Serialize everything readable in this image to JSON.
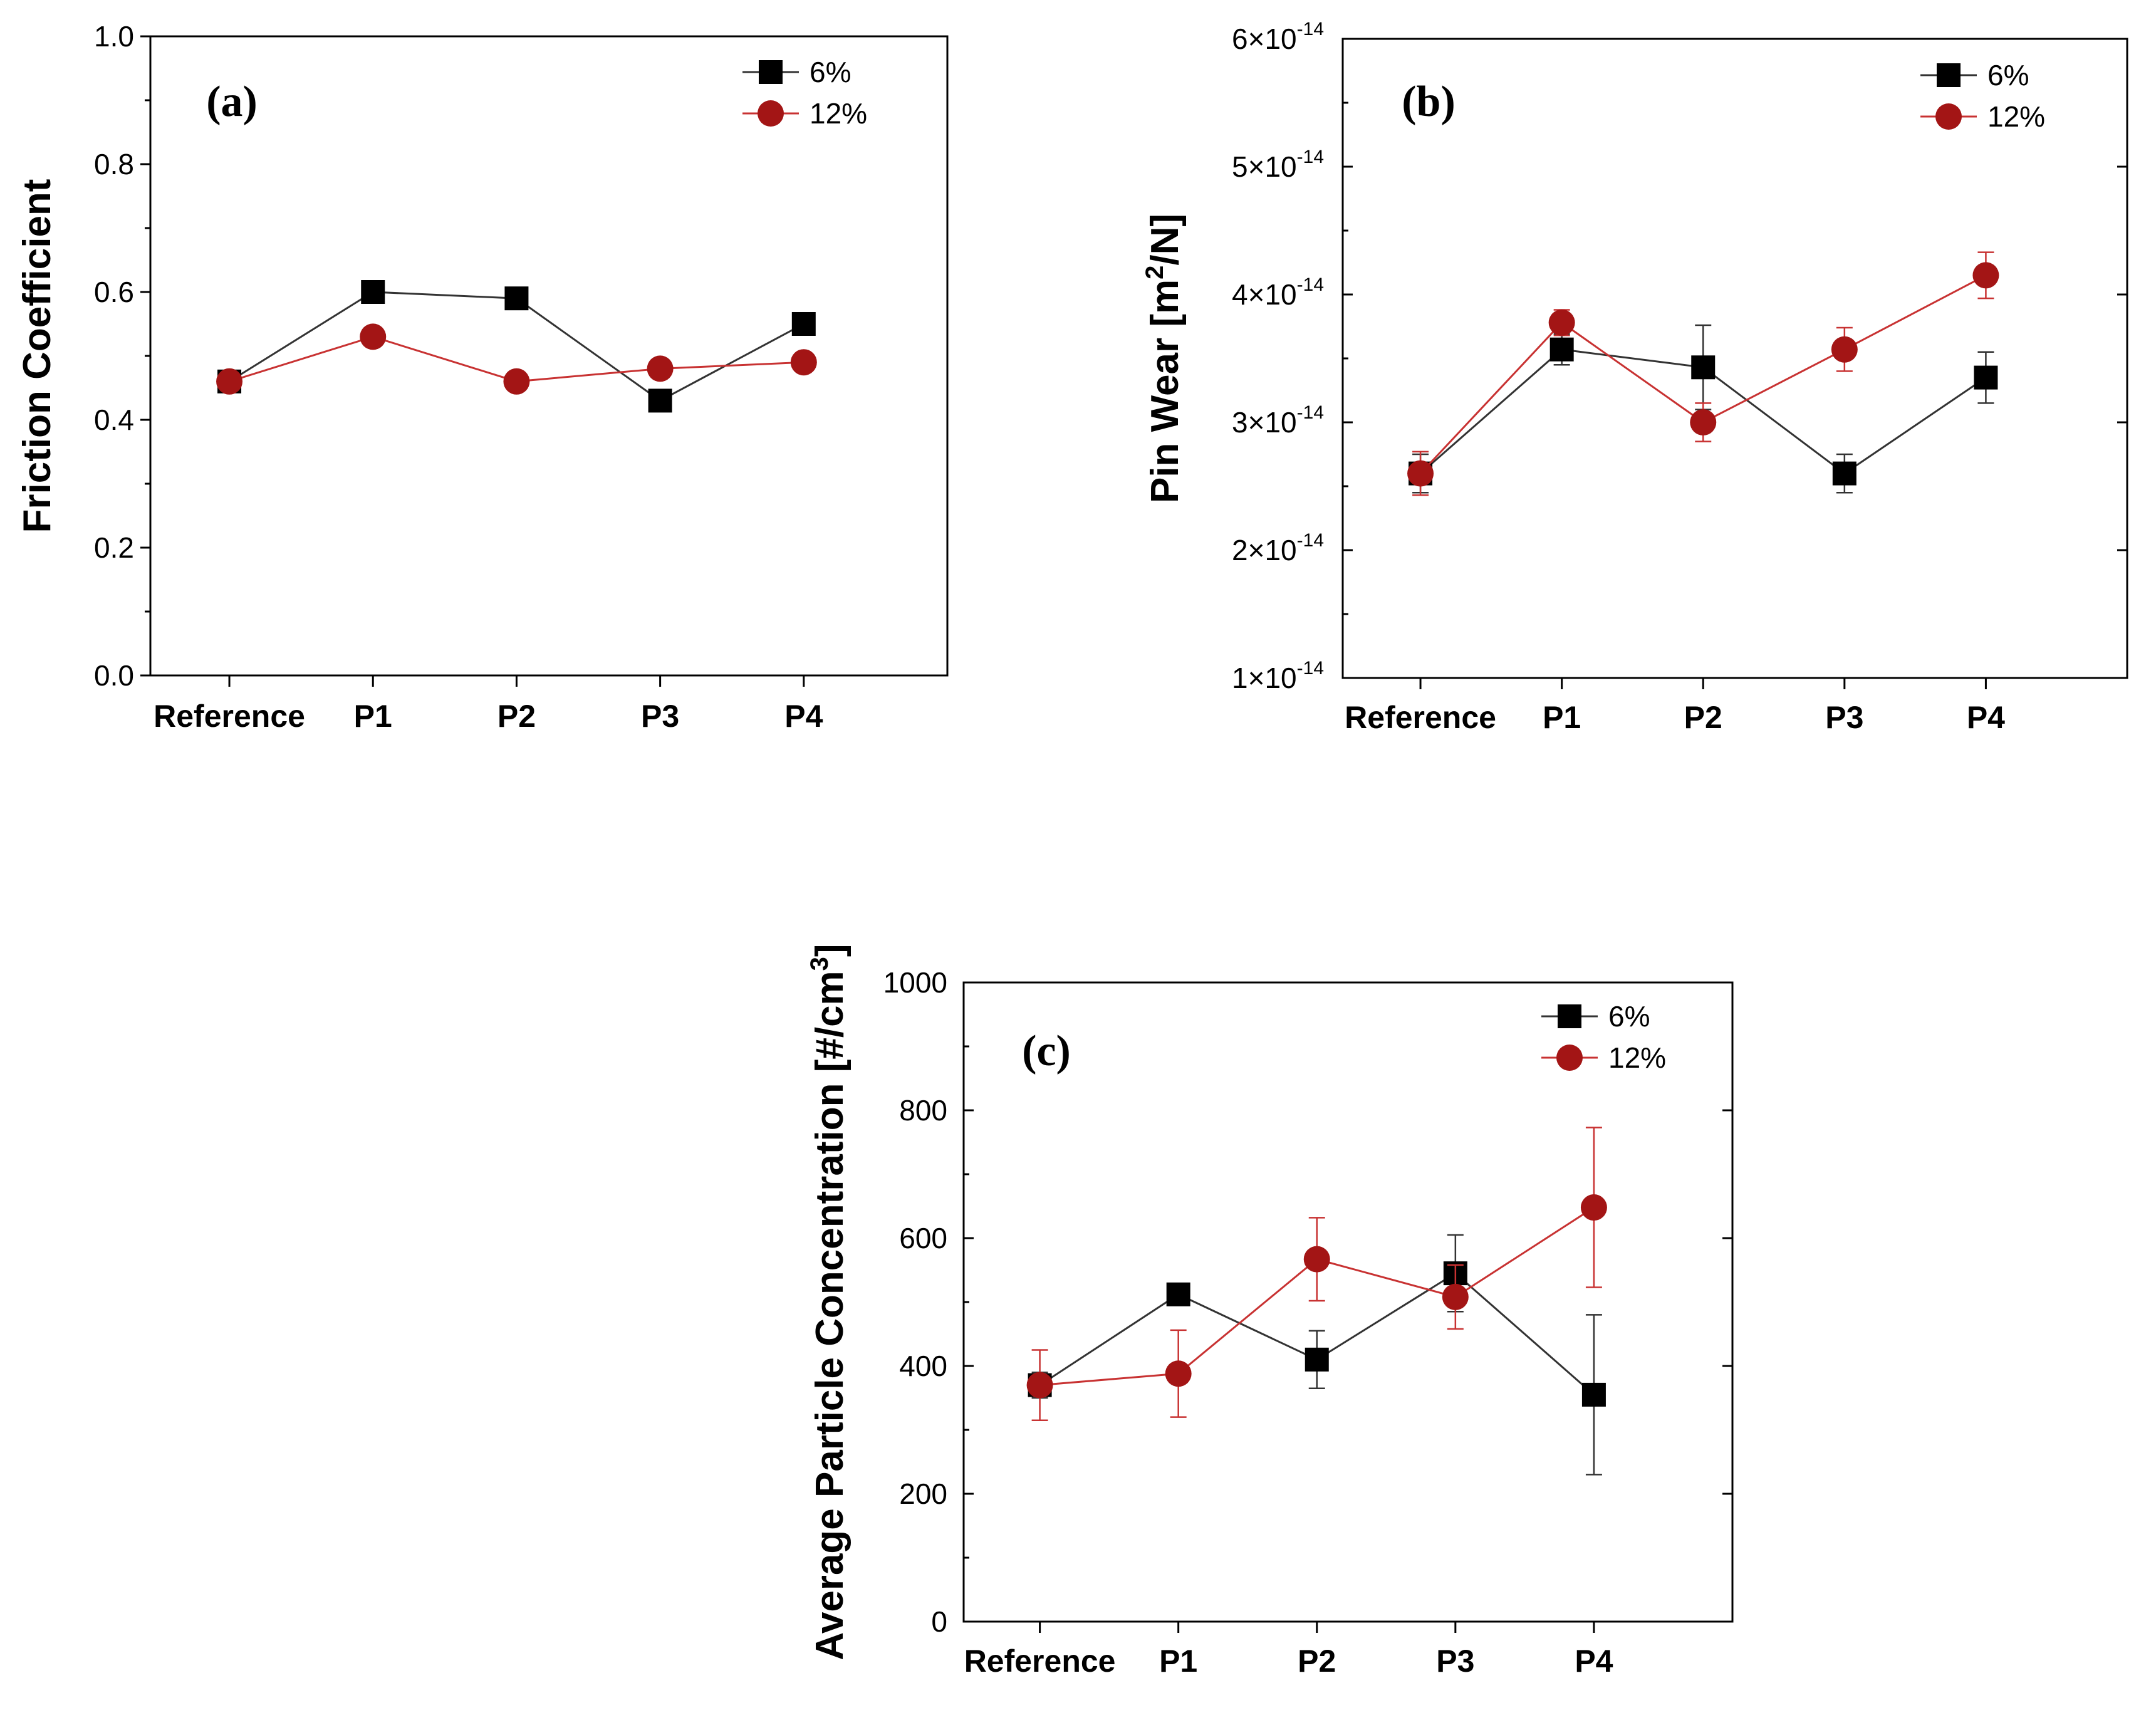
{
  "chart_data": [
    {
      "type": "line",
      "panel_label": "(a)",
      "title": "",
      "xlabel": "",
      "ylabel": "Friction Coefficient",
      "categories": [
        "Reference",
        "P1",
        "P2",
        "P3",
        "P4"
      ],
      "ylim": [
        0.0,
        1.0
      ],
      "yticks": [
        0.0,
        0.2,
        0.4,
        0.6,
        0.8,
        1.0
      ],
      "ytick_labels": [
        "0.0",
        "0.2",
        "0.4",
        "0.6",
        "0.8",
        "1.0"
      ],
      "legend_position": "top-right",
      "series": [
        {
          "name": "6%",
          "marker": "square",
          "color": "#000000",
          "line_color": "#333333",
          "values": [
            0.46,
            0.6,
            0.59,
            0.43,
            0.55
          ],
          "errors": [
            0.01,
            0.01,
            0.01,
            0.01,
            0.015
          ]
        },
        {
          "name": "12%",
          "marker": "circle",
          "color": "#a31515",
          "line_color": "#c83232",
          "values": [
            0.46,
            0.53,
            0.46,
            0.48,
            0.49
          ],
          "errors": [
            0.01,
            0.01,
            0.01,
            0.01,
            0.01
          ]
        }
      ]
    },
    {
      "type": "line",
      "panel_label": "(b)",
      "title": "",
      "xlabel": "",
      "ylabel": "Pin Wear [m²/N]",
      "ylabel_base": "Pin Wear [m",
      "ylabel_sup": "2",
      "ylabel_end": "/N]",
      "categories": [
        "Reference",
        "P1",
        "P2",
        "P3",
        "P4"
      ],
      "ylim": [
        1e-14,
        6e-14
      ],
      "yticks": [
        1e-14,
        2e-14,
        3e-14,
        4e-14,
        5e-14,
        6e-14
      ],
      "ytick_labels": [
        {
          "base": "1×10",
          "exp": "-14"
        },
        {
          "base": "2×10",
          "exp": "-14"
        },
        {
          "base": "3×10",
          "exp": "-14"
        },
        {
          "base": "4×10",
          "exp": "-14"
        },
        {
          "base": "5×10",
          "exp": "-14"
        },
        {
          "base": "6×10",
          "exp": "-14"
        }
      ],
      "legend_position": "top-right",
      "series": [
        {
          "name": "6%",
          "marker": "square",
          "color": "#000000",
          "line_color": "#333333",
          "values": [
            2.6e-14,
            3.57e-14,
            3.43e-14,
            2.6e-14,
            3.35e-14
          ],
          "errors": [
            1.5e-15,
            1.2e-15,
            3.3e-15,
            1.5e-15,
            2e-15
          ]
        },
        {
          "name": "12%",
          "marker": "circle",
          "color": "#a31515",
          "line_color": "#c83232",
          "values": [
            2.6e-14,
            3.78e-14,
            3e-14,
            3.57e-14,
            4.15e-14
          ],
          "errors": [
            1.7e-15,
            1e-15,
            1.5e-15,
            1.7e-15,
            1.8e-15
          ]
        }
      ]
    },
    {
      "type": "line",
      "panel_label": "(c)",
      "title": "",
      "xlabel": "",
      "ylabel": "Average Particle Concentration [#/cm³]",
      "ylabel_base": "Average Particle Concentration [#/cm",
      "ylabel_sup": "3",
      "ylabel_end": "]",
      "categories": [
        "Reference",
        "P1",
        "P2",
        "P3",
        "P4"
      ],
      "ylim": [
        0,
        1000
      ],
      "yticks": [
        0,
        200,
        400,
        600,
        800,
        1000
      ],
      "ytick_labels": [
        "0",
        "200",
        "400",
        "600",
        "800",
        "1000"
      ],
      "legend_position": "top-right",
      "series": [
        {
          "name": "6%",
          "marker": "square",
          "color": "#000000",
          "line_color": "#333333",
          "values": [
            370,
            512,
            410,
            545,
            355
          ],
          "errors": [
            20,
            10,
            45,
            60,
            125
          ]
        },
        {
          "name": "12%",
          "marker": "circle",
          "color": "#a31515",
          "line_color": "#c83232",
          "values": [
            370,
            388,
            567,
            508,
            648
          ],
          "errors": [
            55,
            68,
            65,
            50,
            125
          ]
        }
      ]
    }
  ]
}
